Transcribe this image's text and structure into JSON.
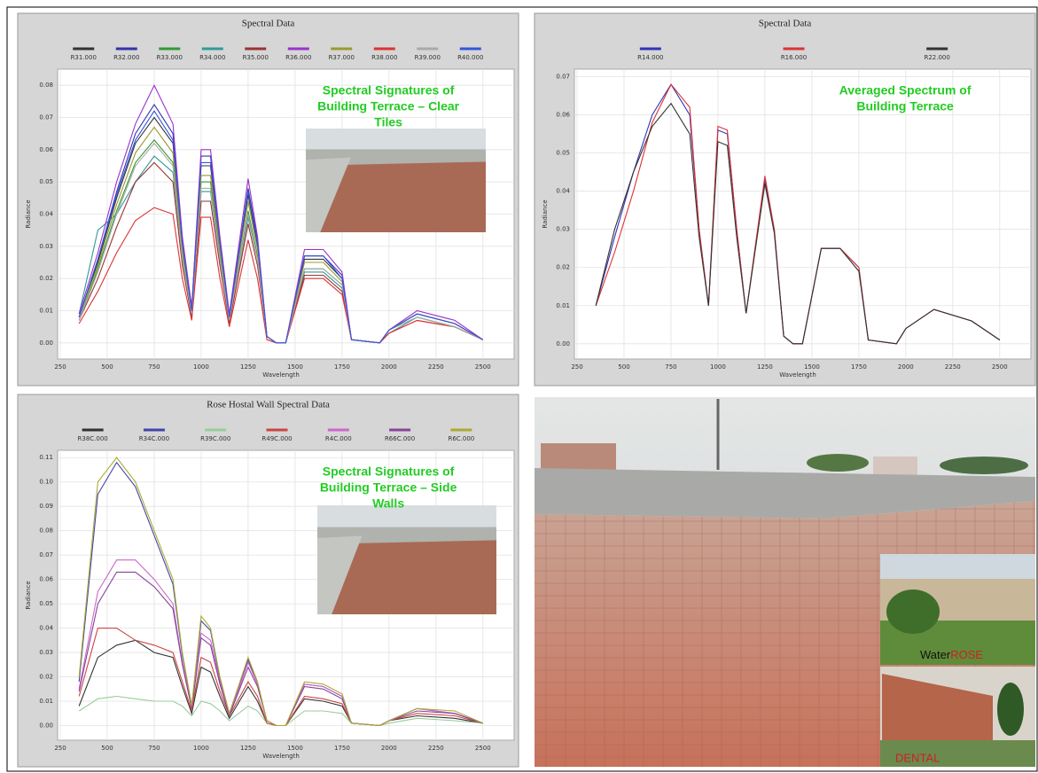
{
  "chart_data": [
    {
      "type": "line",
      "title": "Spectral Data",
      "x_label": "Wavelength",
      "y_label": "Radiance",
      "annotation": [
        "Spectral Signatures of",
        "Building Terrace – Clear",
        "Tiles"
      ],
      "x": [
        350,
        450,
        550,
        650,
        750,
        850,
        900,
        950,
        1000,
        1050,
        1100,
        1150,
        1250,
        1300,
        1350,
        1400,
        1450,
        1550,
        1650,
        1750,
        1800,
        1950,
        2000,
        2150,
        2350,
        2500
      ],
      "xlim": [
        250,
        2600
      ],
      "xticks": [
        250,
        500,
        750,
        1000,
        1250,
        1500,
        1750,
        2000,
        2250,
        2500
      ],
      "ylim": [
        -0.005,
        0.085
      ],
      "yticks": [
        {
          "value": 0,
          "label": "0.00"
        },
        {
          "value": 0.01,
          "label": "0.01"
        },
        {
          "value": 0.02,
          "label": "0.02"
        },
        {
          "value": 0.03,
          "label": "0.03"
        },
        {
          "value": 0.04,
          "label": "0.04"
        },
        {
          "value": 0.05,
          "label": "0.05"
        },
        {
          "value": 0.06,
          "label": "0.06"
        },
        {
          "value": 0.07,
          "label": "0.07"
        },
        {
          "value": 0.08,
          "label": "0.08"
        }
      ],
      "grid": true,
      "series": [
        {
          "name": "R31.000",
          "color": "#333333",
          "values": [
            0.008,
            0.025,
            0.045,
            0.062,
            0.07,
            0.062,
            0.03,
            0.01,
            0.055,
            0.055,
            0.03,
            0.008,
            0.046,
            0.03,
            0.002,
            0,
            0,
            0.026,
            0.026,
            0.02,
            0.001,
            0,
            0.004,
            0.009,
            0.006,
            0.001
          ]
        },
        {
          "name": "R32.000",
          "color": "#3333aa",
          "values": [
            0.008,
            0.026,
            0.047,
            0.065,
            0.074,
            0.065,
            0.032,
            0.011,
            0.058,
            0.058,
            0.032,
            0.008,
            0.048,
            0.032,
            0.002,
            0,
            0,
            0.027,
            0.027,
            0.021,
            0.001,
            0,
            0.004,
            0.009,
            0.006,
            0.001
          ]
        },
        {
          "name": "R33.000",
          "color": "#339933",
          "values": [
            0.007,
            0.023,
            0.041,
            0.056,
            0.063,
            0.056,
            0.027,
            0.009,
            0.05,
            0.05,
            0.027,
            0.007,
            0.041,
            0.027,
            0.002,
            0,
            0,
            0.023,
            0.023,
            0.018,
            0.001,
            0,
            0.004,
            0.008,
            0.005,
            0.001
          ]
        },
        {
          "name": "R34.000",
          "color": "#339999",
          "values": [
            0.009,
            0.035,
            0.04,
            0.05,
            0.058,
            0.053,
            0.026,
            0.009,
            0.047,
            0.047,
            0.026,
            0.007,
            0.039,
            0.026,
            0.002,
            0,
            0,
            0.022,
            0.022,
            0.017,
            0.001,
            0,
            0.003,
            0.008,
            0.005,
            0.001
          ]
        },
        {
          "name": "R35.000",
          "color": "#993333",
          "values": [
            0.007,
            0.02,
            0.036,
            0.05,
            0.056,
            0.05,
            0.024,
            0.008,
            0.044,
            0.044,
            0.024,
            0.006,
            0.037,
            0.024,
            0.002,
            0,
            0,
            0.021,
            0.021,
            0.016,
            0.001,
            0,
            0.003,
            0.007,
            0.005,
            0.001
          ]
        },
        {
          "name": "R36.000",
          "color": "#9933cc",
          "values": [
            0.009,
            0.028,
            0.05,
            0.068,
            0.08,
            0.068,
            0.033,
            0.011,
            0.06,
            0.06,
            0.033,
            0.009,
            0.051,
            0.033,
            0.002,
            0,
            0,
            0.029,
            0.029,
            0.022,
            0.001,
            0,
            0.004,
            0.01,
            0.007,
            0.001
          ]
        },
        {
          "name": "R37.000",
          "color": "#999933",
          "values": [
            0.008,
            0.024,
            0.043,
            0.059,
            0.067,
            0.059,
            0.029,
            0.01,
            0.052,
            0.052,
            0.029,
            0.008,
            0.044,
            0.029,
            0.002,
            0,
            0,
            0.025,
            0.025,
            0.019,
            0.001,
            0,
            0.004,
            0.009,
            0.006,
            0.001
          ]
        },
        {
          "name": "R38.000",
          "color": "#dd3333",
          "values": [
            0.006,
            0.016,
            0.028,
            0.038,
            0.042,
            0.04,
            0.02,
            0.007,
            0.039,
            0.039,
            0.02,
            0.005,
            0.032,
            0.02,
            0.001,
            0,
            0,
            0.02,
            0.02,
            0.015,
            0.001,
            0,
            0.003,
            0.007,
            0.005,
            0.001
          ]
        },
        {
          "name": "R39.000",
          "color": "#aaaaaa",
          "values": [
            0.007,
            0.022,
            0.04,
            0.055,
            0.062,
            0.055,
            0.026,
            0.009,
            0.048,
            0.048,
            0.026,
            0.007,
            0.04,
            0.026,
            0.002,
            0,
            0,
            0.023,
            0.023,
            0.018,
            0.001,
            0,
            0.004,
            0.008,
            0.005,
            0.001
          ]
        },
        {
          "name": "R40.000",
          "color": "#3355dd",
          "values": [
            0.008,
            0.026,
            0.046,
            0.063,
            0.072,
            0.063,
            0.031,
            0.01,
            0.056,
            0.056,
            0.031,
            0.008,
            0.047,
            0.031,
            0.002,
            0,
            0,
            0.027,
            0.027,
            0.02,
            0.001,
            0,
            0.004,
            0.009,
            0.006,
            0.001
          ]
        }
      ]
    },
    {
      "type": "line",
      "title": "Spectral Data",
      "x_label": "Wavelength",
      "y_label": "Radiance",
      "annotation": [
        "Averaged  Spectrum of",
        "Building Terrace"
      ],
      "x": [
        350,
        450,
        550,
        650,
        750,
        850,
        900,
        950,
        1000,
        1050,
        1100,
        1150,
        1250,
        1300,
        1350,
        1400,
        1450,
        1550,
        1650,
        1750,
        1800,
        1950,
        2000,
        2150,
        2350,
        2500
      ],
      "xlim": [
        250,
        2600
      ],
      "xticks": [
        250,
        500,
        750,
        1000,
        1250,
        1500,
        1750,
        2000,
        2250,
        2500
      ],
      "ylim": [
        -0.004,
        0.072
      ],
      "yticks": [
        {
          "value": 0,
          "label": "0.00"
        },
        {
          "value": 0.01,
          "label": "0.01"
        },
        {
          "value": 0.02,
          "label": "0.02"
        },
        {
          "value": 0.03,
          "label": "0.03"
        },
        {
          "value": 0.04,
          "label": "0.04"
        },
        {
          "value": 0.05,
          "label": "0.05"
        },
        {
          "value": 0.06,
          "label": "0.06"
        },
        {
          "value": 0.07,
          "label": "0.07"
        }
      ],
      "grid": true,
      "series": [
        {
          "name": "R14.000",
          "color": "#3333bb",
          "values": [
            0.01,
            0.028,
            0.045,
            0.06,
            0.068,
            0.06,
            0.03,
            0.01,
            0.056,
            0.055,
            0.03,
            0.008,
            0.043,
            0.03,
            0.002,
            0,
            0,
            0.025,
            0.025,
            0.02,
            0.001,
            0,
            0.004,
            0.009,
            0.006,
            0.001
          ]
        },
        {
          "name": "R16.000",
          "color": "#dd3333",
          "values": [
            0.01,
            0.024,
            0.04,
            0.058,
            0.068,
            0.062,
            0.03,
            0.01,
            0.057,
            0.056,
            0.03,
            0.008,
            0.044,
            0.03,
            0.002,
            0,
            0,
            0.025,
            0.025,
            0.02,
            0.001,
            0,
            0.004,
            0.009,
            0.006,
            0.001
          ]
        },
        {
          "name": "R22.000",
          "color": "#333333",
          "values": [
            0.01,
            0.03,
            0.045,
            0.057,
            0.063,
            0.055,
            0.028,
            0.01,
            0.053,
            0.052,
            0.028,
            0.008,
            0.042,
            0.029,
            0.002,
            0,
            0,
            0.025,
            0.025,
            0.019,
            0.001,
            0,
            0.004,
            0.009,
            0.006,
            0.001
          ]
        }
      ]
    },
    {
      "type": "line",
      "title": "Rose Hostal  Wall Spectral Data",
      "x_label": "Wavelength",
      "y_label": "Radiance",
      "annotation": [
        "Spectral Signatures of",
        "Building Terrace – Side",
        "Walls"
      ],
      "x": [
        350,
        450,
        550,
        650,
        750,
        850,
        900,
        950,
        1000,
        1050,
        1100,
        1150,
        1250,
        1300,
        1350,
        1400,
        1450,
        1550,
        1650,
        1750,
        1800,
        1950,
        2000,
        2150,
        2350,
        2500
      ],
      "xlim": [
        250,
        2600
      ],
      "xticks": [
        250,
        500,
        750,
        1000,
        1250,
        1500,
        1750,
        2000,
        2250,
        2500
      ],
      "ylim": [
        -0.006,
        0.113
      ],
      "yticks": [
        {
          "value": 0,
          "label": "0.00"
        },
        {
          "value": 0.01,
          "label": "0.01"
        },
        {
          "value": 0.02,
          "label": "0.02"
        },
        {
          "value": 0.03,
          "label": "0.03"
        },
        {
          "value": 0.04,
          "label": "0.04"
        },
        {
          "value": 0.05,
          "label": "0.05"
        },
        {
          "value": 0.06,
          "label": "0.06"
        },
        {
          "value": 0.07,
          "label": "0.07"
        },
        {
          "value": 0.08,
          "label": "0.08"
        },
        {
          "value": 0.09,
          "label": "0.09"
        },
        {
          "value": 0.1,
          "label": "0.10"
        },
        {
          "value": 0.11,
          "label": "0.11"
        }
      ],
      "grid": true,
      "series": [
        {
          "name": "R38C.000",
          "color": "#333333",
          "values": [
            0.008,
            0.028,
            0.033,
            0.035,
            0.03,
            0.028,
            0.016,
            0.005,
            0.024,
            0.022,
            0.012,
            0.003,
            0.016,
            0.01,
            0.001,
            0,
            0,
            0.011,
            0.01,
            0.008,
            0.001,
            0,
            0.002,
            0.004,
            0.003,
            0.001
          ]
        },
        {
          "name": "R34C.000",
          "color": "#4444aa",
          "values": [
            0.018,
            0.095,
            0.108,
            0.098,
            0.078,
            0.058,
            0.029,
            0.008,
            0.043,
            0.039,
            0.019,
            0.005,
            0.027,
            0.017,
            0.002,
            0,
            0,
            0.017,
            0.016,
            0.012,
            0.001,
            0,
            0.002,
            0.007,
            0.005,
            0.001
          ]
        },
        {
          "name": "R39C.000",
          "color": "#99cc99",
          "values": [
            0.006,
            0.011,
            0.012,
            0.011,
            0.01,
            0.01,
            0.008,
            0.004,
            0.01,
            0.009,
            0.006,
            0.002,
            0.008,
            0.006,
            0.001,
            0,
            0,
            0.006,
            0.006,
            0.005,
            0.001,
            0,
            0.001,
            0.003,
            0.002,
            0.001
          ]
        },
        {
          "name": "R49C.000",
          "color": "#cc4444",
          "values": [
            0.012,
            0.04,
            0.04,
            0.035,
            0.033,
            0.03,
            0.018,
            0.006,
            0.028,
            0.026,
            0.014,
            0.004,
            0.018,
            0.012,
            0.001,
            0,
            0,
            0.012,
            0.011,
            0.009,
            0.001,
            0,
            0.002,
            0.005,
            0.004,
            0.001
          ]
        },
        {
          "name": "R4C.000",
          "color": "#cc66cc",
          "values": [
            0.015,
            0.055,
            0.068,
            0.068,
            0.06,
            0.05,
            0.026,
            0.007,
            0.038,
            0.035,
            0.018,
            0.004,
            0.026,
            0.017,
            0.002,
            0,
            0,
            0.017,
            0.016,
            0.012,
            0.001,
            0,
            0.002,
            0.007,
            0.005,
            0.001
          ]
        },
        {
          "name": "R66C.000",
          "color": "#884499",
          "values": [
            0.014,
            0.05,
            0.063,
            0.063,
            0.057,
            0.048,
            0.025,
            0.007,
            0.036,
            0.033,
            0.017,
            0.004,
            0.024,
            0.016,
            0.002,
            0,
            0,
            0.016,
            0.015,
            0.011,
            0.001,
            0,
            0.002,
            0.006,
            0.005,
            0.001
          ]
        },
        {
          "name": "R6C.000",
          "color": "#aaaa33",
          "values": [
            0.02,
            0.1,
            0.11,
            0.1,
            0.08,
            0.06,
            0.03,
            0.008,
            0.045,
            0.04,
            0.02,
            0.005,
            0.028,
            0.018,
            0.002,
            0,
            0,
            0.018,
            0.017,
            0.013,
            0.001,
            0,
            0.002,
            0.007,
            0.006,
            0.001
          ]
        }
      ]
    }
  ],
  "photo_labels": {
    "water": "Water",
    "rose": "ROSE",
    "dental": "DENTAL"
  }
}
